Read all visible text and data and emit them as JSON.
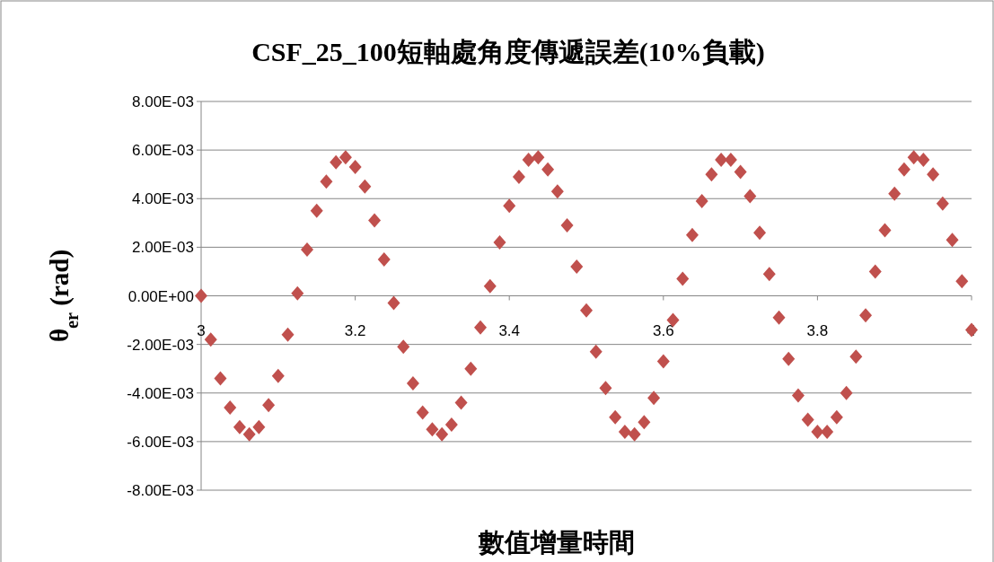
{
  "chart_data": {
    "type": "scatter",
    "title": "CSF_25_100短軸處角度傳遞誤差(10%負載)",
    "xlabel": "數值增量時間",
    "ylabel": "θ$_{er}$ (rad)",
    "marker": "diamond",
    "grid": "y",
    "color": "#c0504d",
    "xlim": [
      3,
      4
    ],
    "xticks": [
      3,
      3.2,
      3.4,
      3.6,
      3.8,
      4
    ],
    "ylim": [
      -0.008,
      0.008
    ],
    "yticks": [
      {
        "value": -0.008,
        "label": "-8.00E-03"
      },
      {
        "value": -0.006,
        "label": "-6.00E-03"
      },
      {
        "value": -0.004,
        "label": "-4.00E-03"
      },
      {
        "value": -0.002,
        "label": "-2.00E-03"
      },
      {
        "value": 0,
        "label": "0.00E+00"
      },
      {
        "value": 0.002,
        "label": "2.00E-03"
      },
      {
        "value": 0.004,
        "label": "4.00E-03"
      },
      {
        "value": 0.006,
        "label": "6.00E-03"
      },
      {
        "value": 0.008,
        "label": "8.00E-03"
      }
    ],
    "x": [
      3,
      3.0125,
      3.025,
      3.0375,
      3.05,
      3.0625,
      3.075,
      3.0875,
      3.1,
      3.1125,
      3.125,
      3.1375,
      3.15,
      3.1625,
      3.175,
      3.1875,
      3.2,
      3.2125,
      3.225,
      3.2375,
      3.25,
      3.2625,
      3.275,
      3.2875,
      3.3,
      3.3125,
      3.325,
      3.3375,
      3.35,
      3.3625,
      3.375,
      3.3875,
      3.4,
      3.4125,
      3.425,
      3.4375,
      3.45,
      3.4625,
      3.475,
      3.4875,
      3.5,
      3.5125,
      3.525,
      3.5375,
      3.55,
      3.5625,
      3.575,
      3.5875,
      3.6,
      3.6125,
      3.625,
      3.6375,
      3.65,
      3.6625,
      3.675,
      3.6875,
      3.7,
      3.7125,
      3.725,
      3.7375,
      3.75,
      3.7625,
      3.775,
      3.7875,
      3.8,
      3.8125,
      3.825,
      3.8375,
      3.85,
      3.8625,
      3.875,
      3.8875,
      3.9,
      3.9125,
      3.925,
      3.9375,
      3.95,
      3.9625,
      3.975,
      3.9875,
      4
    ],
    "values": [
      0,
      -0.0018,
      -0.0034,
      -0.0046,
      -0.0054,
      -0.0057,
      -0.0054,
      -0.0045,
      -0.0033,
      -0.0016,
      0.0001,
      0.0019,
      0.0035,
      0.0047,
      0.0055,
      0.0057,
      0.0053,
      0.0045,
      0.0031,
      0.0015,
      -0.0003,
      -0.0021,
      -0.0036,
      -0.0048,
      -0.0055,
      -0.0057,
      -0.0053,
      -0.0044,
      -0.003,
      -0.0013,
      0.0004,
      0.0022,
      0.0037,
      0.0049,
      0.0056,
      0.0057,
      0.0052,
      0.0043,
      0.0029,
      0.0012,
      -0.0006,
      -0.0023,
      -0.0038,
      -0.005,
      -0.0056,
      -0.0057,
      -0.0052,
      -0.0042,
      -0.0027,
      -0.001,
      0.0007,
      0.0025,
      0.0039,
      0.005,
      0.0056,
      0.0056,
      0.0051,
      0.0041,
      0.0026,
      0.0009,
      -0.0009,
      -0.0026,
      -0.0041,
      -0.0051,
      -0.0056,
      -0.0056,
      -0.005,
      -0.004,
      -0.0025,
      -0.0008,
      0.001,
      0.0027,
      0.0042,
      0.0052,
      0.0057,
      0.0056,
      0.005,
      0.0038,
      0.0023,
      0.0006,
      -0.0014
    ]
  }
}
